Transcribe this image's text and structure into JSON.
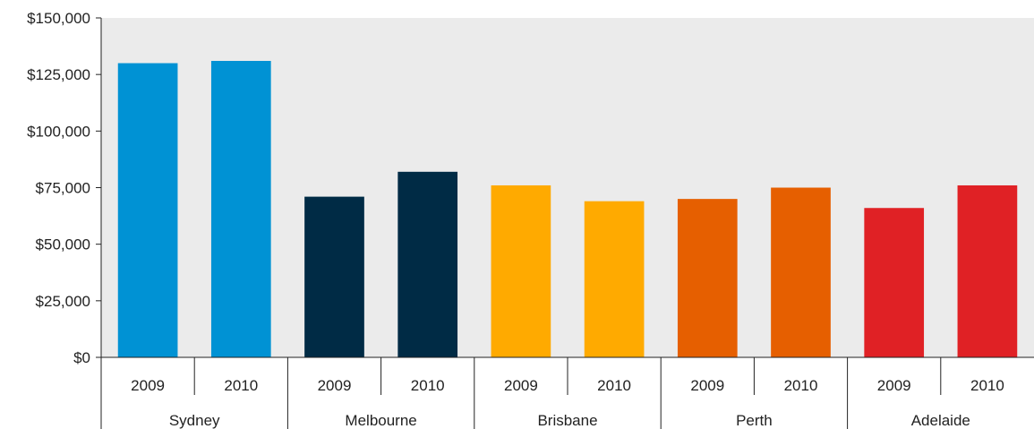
{
  "chart_data": {
    "type": "bar",
    "title": "",
    "xlabel": "",
    "ylabel": "",
    "ylim": [
      0,
      150000
    ],
    "yticks": [
      0,
      25000,
      50000,
      75000,
      100000,
      125000,
      150000
    ],
    "ytick_labels": [
      "$0",
      "$25,000",
      "$50,000",
      "$75,000",
      "$100,000",
      "$125,000",
      "$150,000"
    ],
    "grid": false,
    "plot_background": "#ebebeb",
    "groups": [
      {
        "name": "Sydney",
        "color": "#0092d4",
        "bars": [
          {
            "label": "2009",
            "value": 130000
          },
          {
            "label": "2010",
            "value": 131000
          }
        ]
      },
      {
        "name": "Melbourne",
        "color": "#002b45",
        "bars": [
          {
            "label": "2009",
            "value": 71000
          },
          {
            "label": "2010",
            "value": 82000
          }
        ]
      },
      {
        "name": "Brisbane",
        "color": "#ffaa00",
        "bars": [
          {
            "label": "2009",
            "value": 76000
          },
          {
            "label": "2010",
            "value": 69000
          }
        ]
      },
      {
        "name": "Perth",
        "color": "#e65f00",
        "bars": [
          {
            "label": "2009",
            "value": 70000
          },
          {
            "label": "2010",
            "value": 75000
          }
        ]
      },
      {
        "name": "Adelaide",
        "color": "#e02125",
        "bars": [
          {
            "label": "2009",
            "value": 66000
          },
          {
            "label": "2010",
            "value": 76000
          }
        ]
      }
    ]
  }
}
